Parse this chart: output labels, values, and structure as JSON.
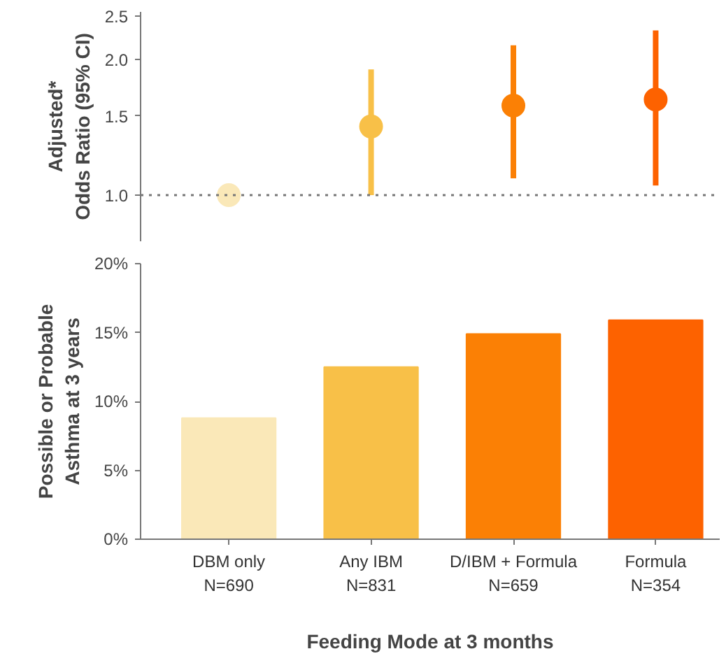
{
  "chart_data": [
    {
      "type": "scatter",
      "ylabel": "Adjusted*\nOdds Ratio (95% CI)",
      "categories": [
        null,
        null,
        null,
        null
      ],
      "values": [
        1.0,
        1.42,
        1.58,
        1.63
      ],
      "errors": [
        null,
        [
          1.0,
          1.9
        ],
        [
          1.09,
          2.15
        ],
        [
          1.05,
          2.32
        ]
      ],
      "colors": [
        "#fae8b8",
        "#f8c048",
        "#fb8005",
        "#fd6200"
      ],
      "marker": "circle",
      "log": "y",
      "ylim": [
        0.79,
        2.55
      ],
      "yticks": [
        {
          "value": 1.0,
          "label": "1.0"
        },
        1.5,
        {
          "value": 2.0,
          "label": "2.0"
        },
        2.5
      ],
      "ref_lines": [
        {
          "axis": "y",
          "value": 1.0,
          "line_style": "dotted",
          "color": "#777777"
        }
      ],
      "tick_labels": "y",
      "grid": false
    },
    {
      "type": "bar",
      "ylabel": "Possible or Probable\nAsthma at 3 years",
      "xlabel": "Feeding Mode at 3 months",
      "categories": [
        "DBM only\nN=690",
        "Any IBM\nN=831",
        "D/IBM + Formula\nN=659",
        "Formula\nN=354"
      ],
      "values": [
        8.8,
        12.5,
        14.9,
        15.9
      ],
      "colors": [
        "#fae8b8",
        "#f8c048",
        "#fb8005",
        "#fd6200"
      ],
      "ylim": [
        0,
        20
      ],
      "yticks": [
        {
          "value": 0,
          "label": "0%"
        },
        {
          "value": 5,
          "label": "5%"
        },
        {
          "value": 10,
          "label": "10%"
        },
        {
          "value": 15,
          "label": "15%"
        },
        {
          "value": 20,
          "label": "20%"
        }
      ],
      "grid": false
    }
  ]
}
